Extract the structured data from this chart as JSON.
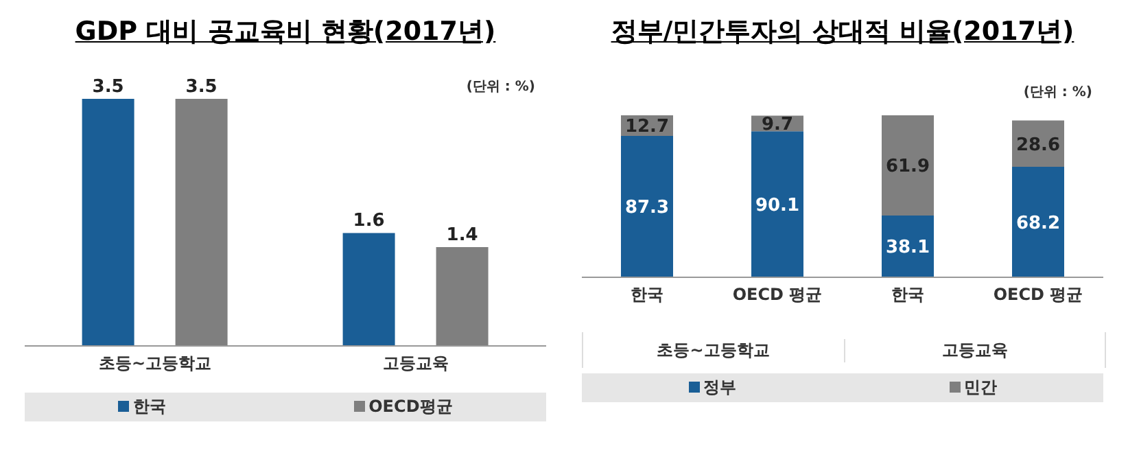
{
  "chart_data": [
    {
      "type": "bar",
      "title": "GDP 대비 공교육비 현황(2017년)",
      "categories": [
        "초등~고등학교",
        "고등교육"
      ],
      "series": [
        {
          "name": "한국",
          "color": "#1a5e96",
          "values": [
            3.5,
            1.6
          ]
        },
        {
          "name": "OECD평균",
          "color": "#7f7f7f",
          "values": [
            3.5,
            1.4
          ]
        }
      ],
      "data_labels": true,
      "legend": "bottom",
      "annotations": [
        "(단위 : %)"
      ]
    },
    {
      "type": "bar",
      "title": "정부/민간투자의 상대적 비율(2017년)",
      "categories": [
        "한국",
        "OECD 평균",
        "한국",
        "OECD 평균"
      ],
      "stacked": true,
      "series": [
        {
          "name": "정부",
          "color": "#1a5e96",
          "values": [
            87.3,
            90.1,
            38.1,
            68.2
          ]
        },
        {
          "name": "민간",
          "color": "#7f7f7f",
          "values": [
            12.7,
            9.7,
            61.9,
            28.6
          ]
        }
      ],
      "data_labels": true,
      "legend": "bottom",
      "annotations": [
        "(단위 : %)",
        "초등~고등학교",
        "고등교육"
      ]
    }
  ]
}
